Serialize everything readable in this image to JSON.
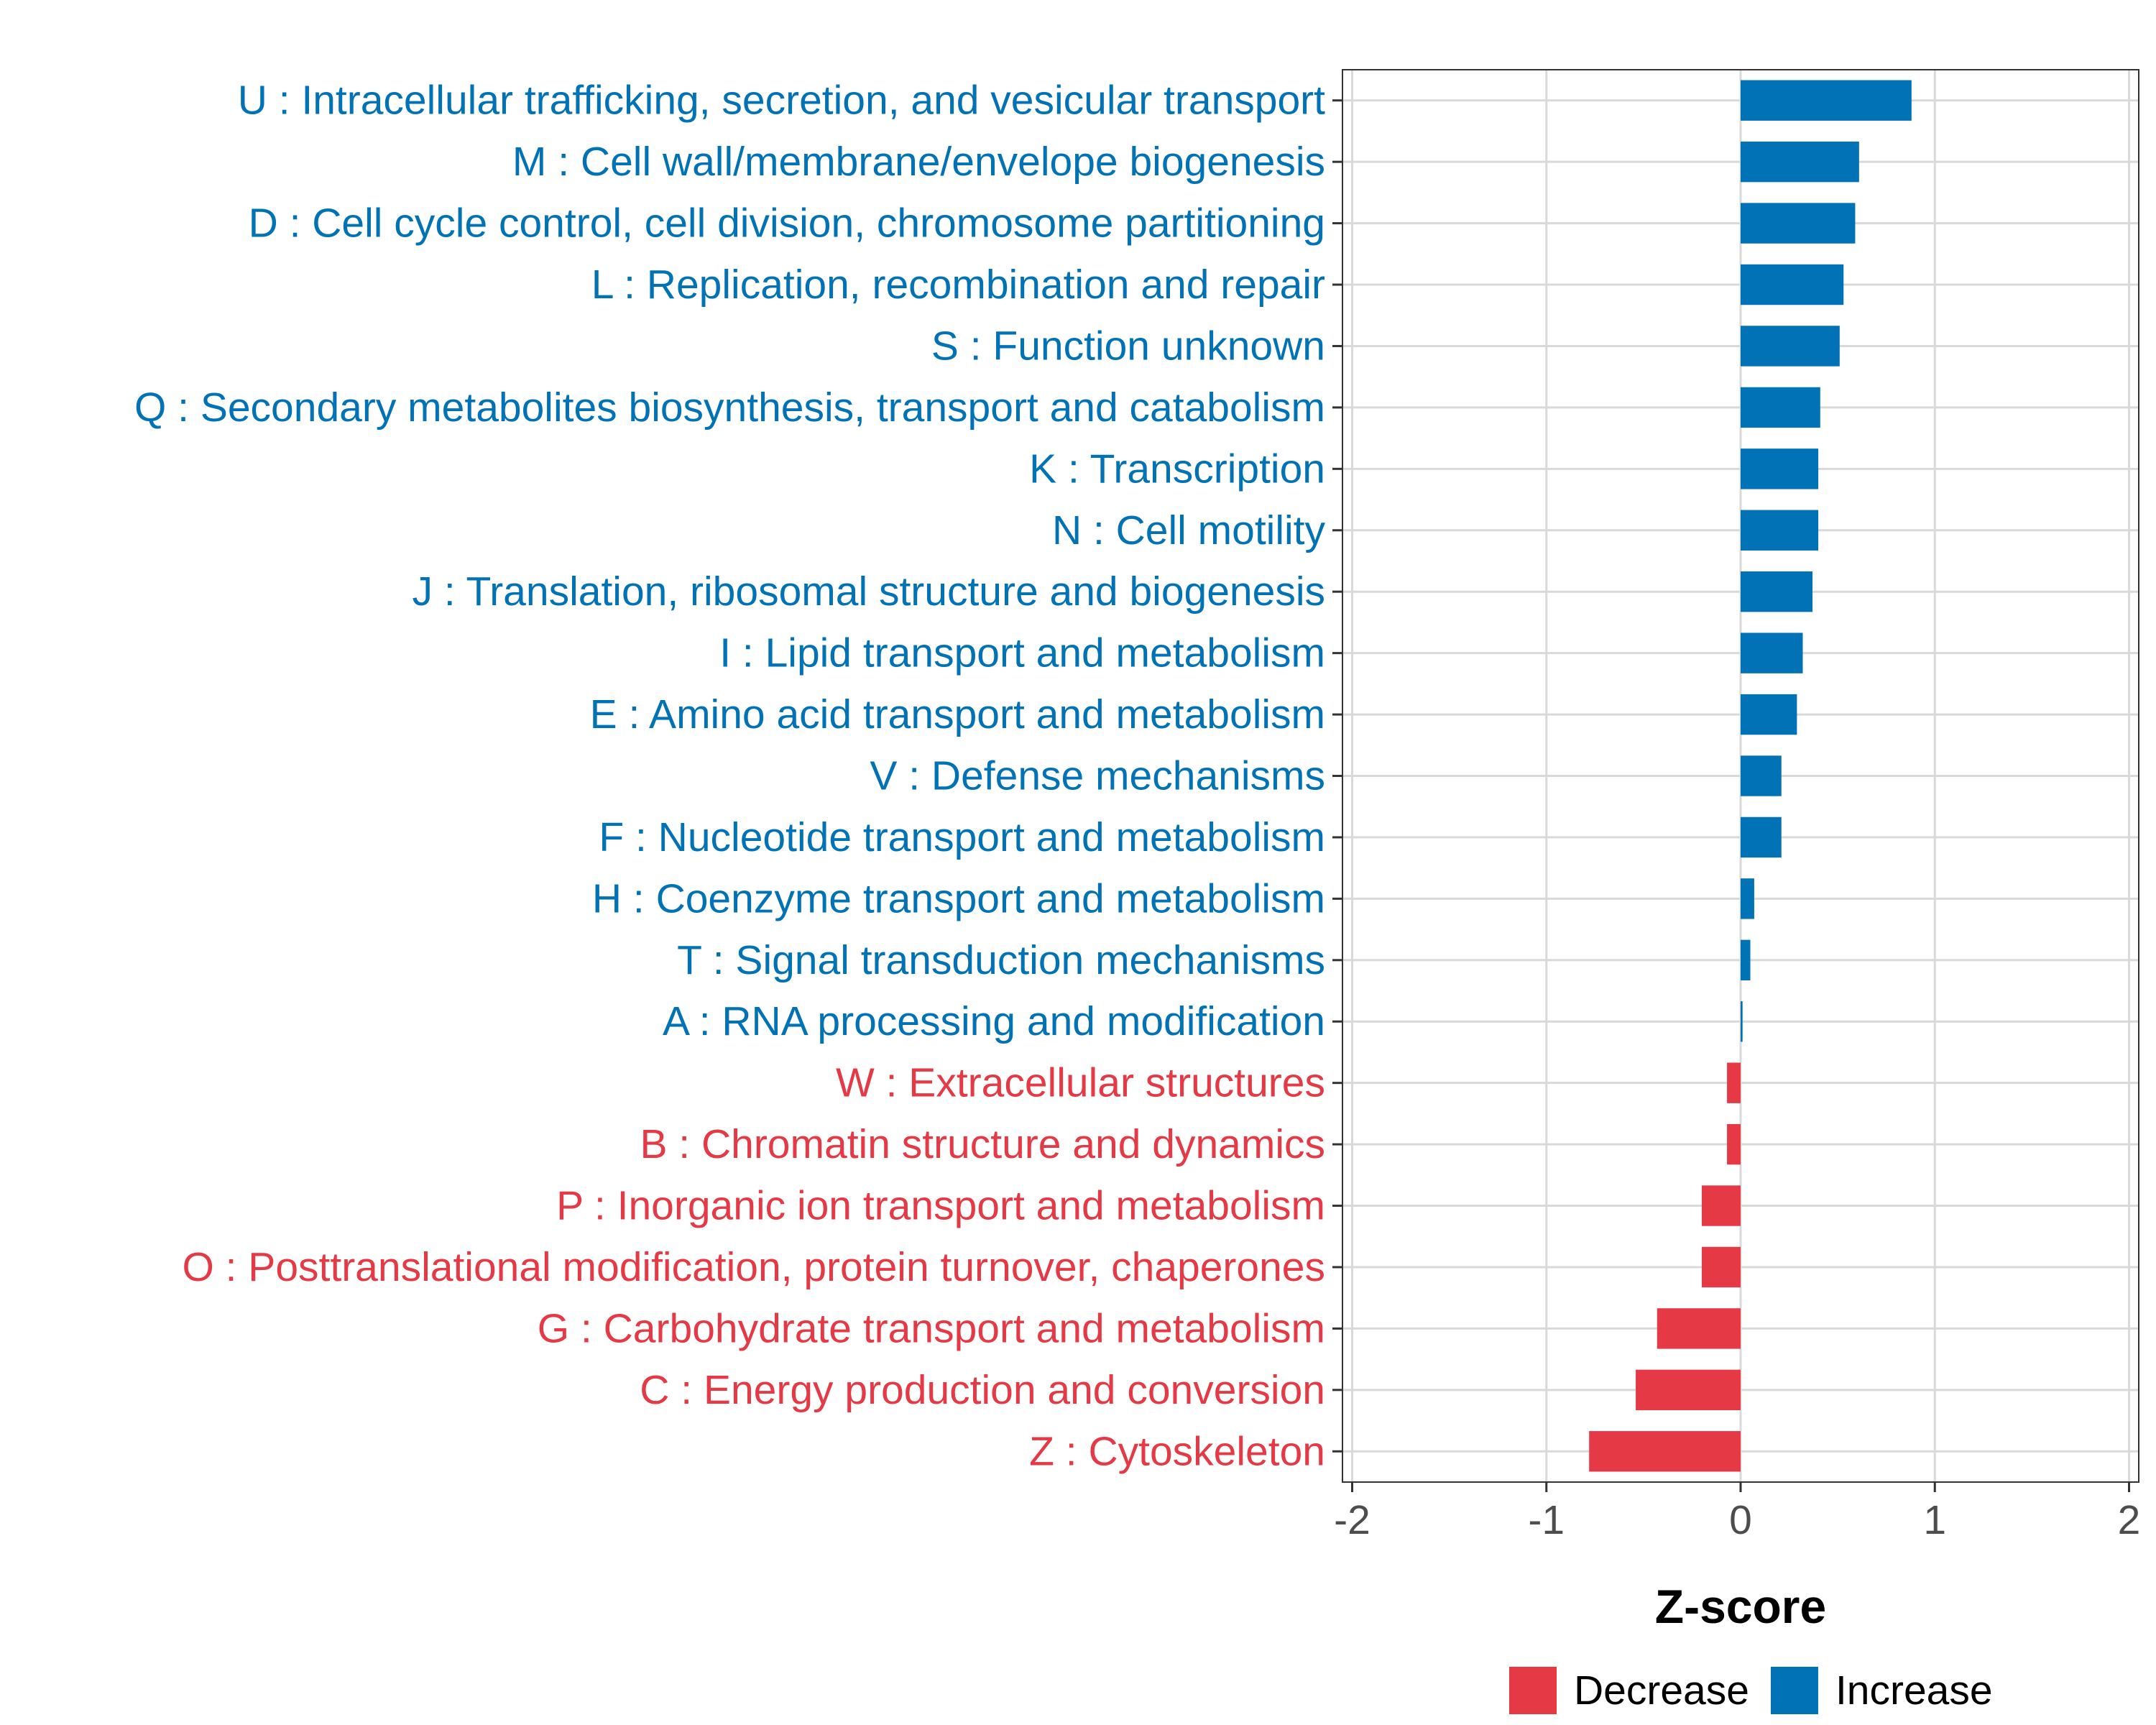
{
  "chart_data": {
    "type": "bar",
    "orientation": "horizontal",
    "xlabel": "Z-score",
    "xlim": [
      -2.05,
      2.05
    ],
    "xticks": [
      -2,
      -1,
      0,
      1,
      2
    ],
    "xtick_labels": [
      "-2",
      "-1",
      "0",
      "1",
      "2"
    ],
    "grid": true,
    "legend_position": "bottom",
    "colors": {
      "Increase": "#0072B5",
      "Decrease": "#E53946"
    },
    "legend": [
      {
        "label": "Decrease",
        "color": "#E53946"
      },
      {
        "label": "Increase",
        "color": "#0072B5"
      }
    ],
    "categories": [
      "U : Intracellular trafficking, secretion, and vesicular transport",
      "M : Cell wall/membrane/envelope biogenesis",
      "D : Cell cycle control, cell division, chromosome partitioning",
      "L : Replication, recombination and repair",
      "S : Function unknown",
      "Q : Secondary metabolites biosynthesis, transport and catabolism",
      "K : Transcription",
      "N : Cell motility",
      "J : Translation, ribosomal structure and biogenesis",
      "I : Lipid transport and metabolism",
      "E : Amino acid transport and metabolism",
      "V : Defense mechanisms",
      "F : Nucleotide transport and metabolism",
      "H : Coenzyme transport and metabolism",
      "T : Signal transduction mechanisms",
      "A : RNA processing and modification",
      "W : Extracellular structures",
      "B : Chromatin structure and dynamics",
      "P : Inorganic ion transport and metabolism",
      "O : Posttranslational modification, protein turnover, chaperones",
      "G : Carbohydrate transport and metabolism",
      "C : Energy production and conversion",
      "Z : Cytoskeleton"
    ],
    "values": [
      0.88,
      0.61,
      0.59,
      0.53,
      0.51,
      0.41,
      0.4,
      0.4,
      0.37,
      0.32,
      0.29,
      0.21,
      0.21,
      0.07,
      0.05,
      0.01,
      -0.07,
      -0.07,
      -0.2,
      -0.2,
      -0.43,
      -0.54,
      -0.78
    ],
    "groups": [
      "Increase",
      "Increase",
      "Increase",
      "Increase",
      "Increase",
      "Increase",
      "Increase",
      "Increase",
      "Increase",
      "Increase",
      "Increase",
      "Increase",
      "Increase",
      "Increase",
      "Increase",
      "Increase",
      "Decrease",
      "Decrease",
      "Decrease",
      "Decrease",
      "Decrease",
      "Decrease",
      "Decrease"
    ]
  }
}
